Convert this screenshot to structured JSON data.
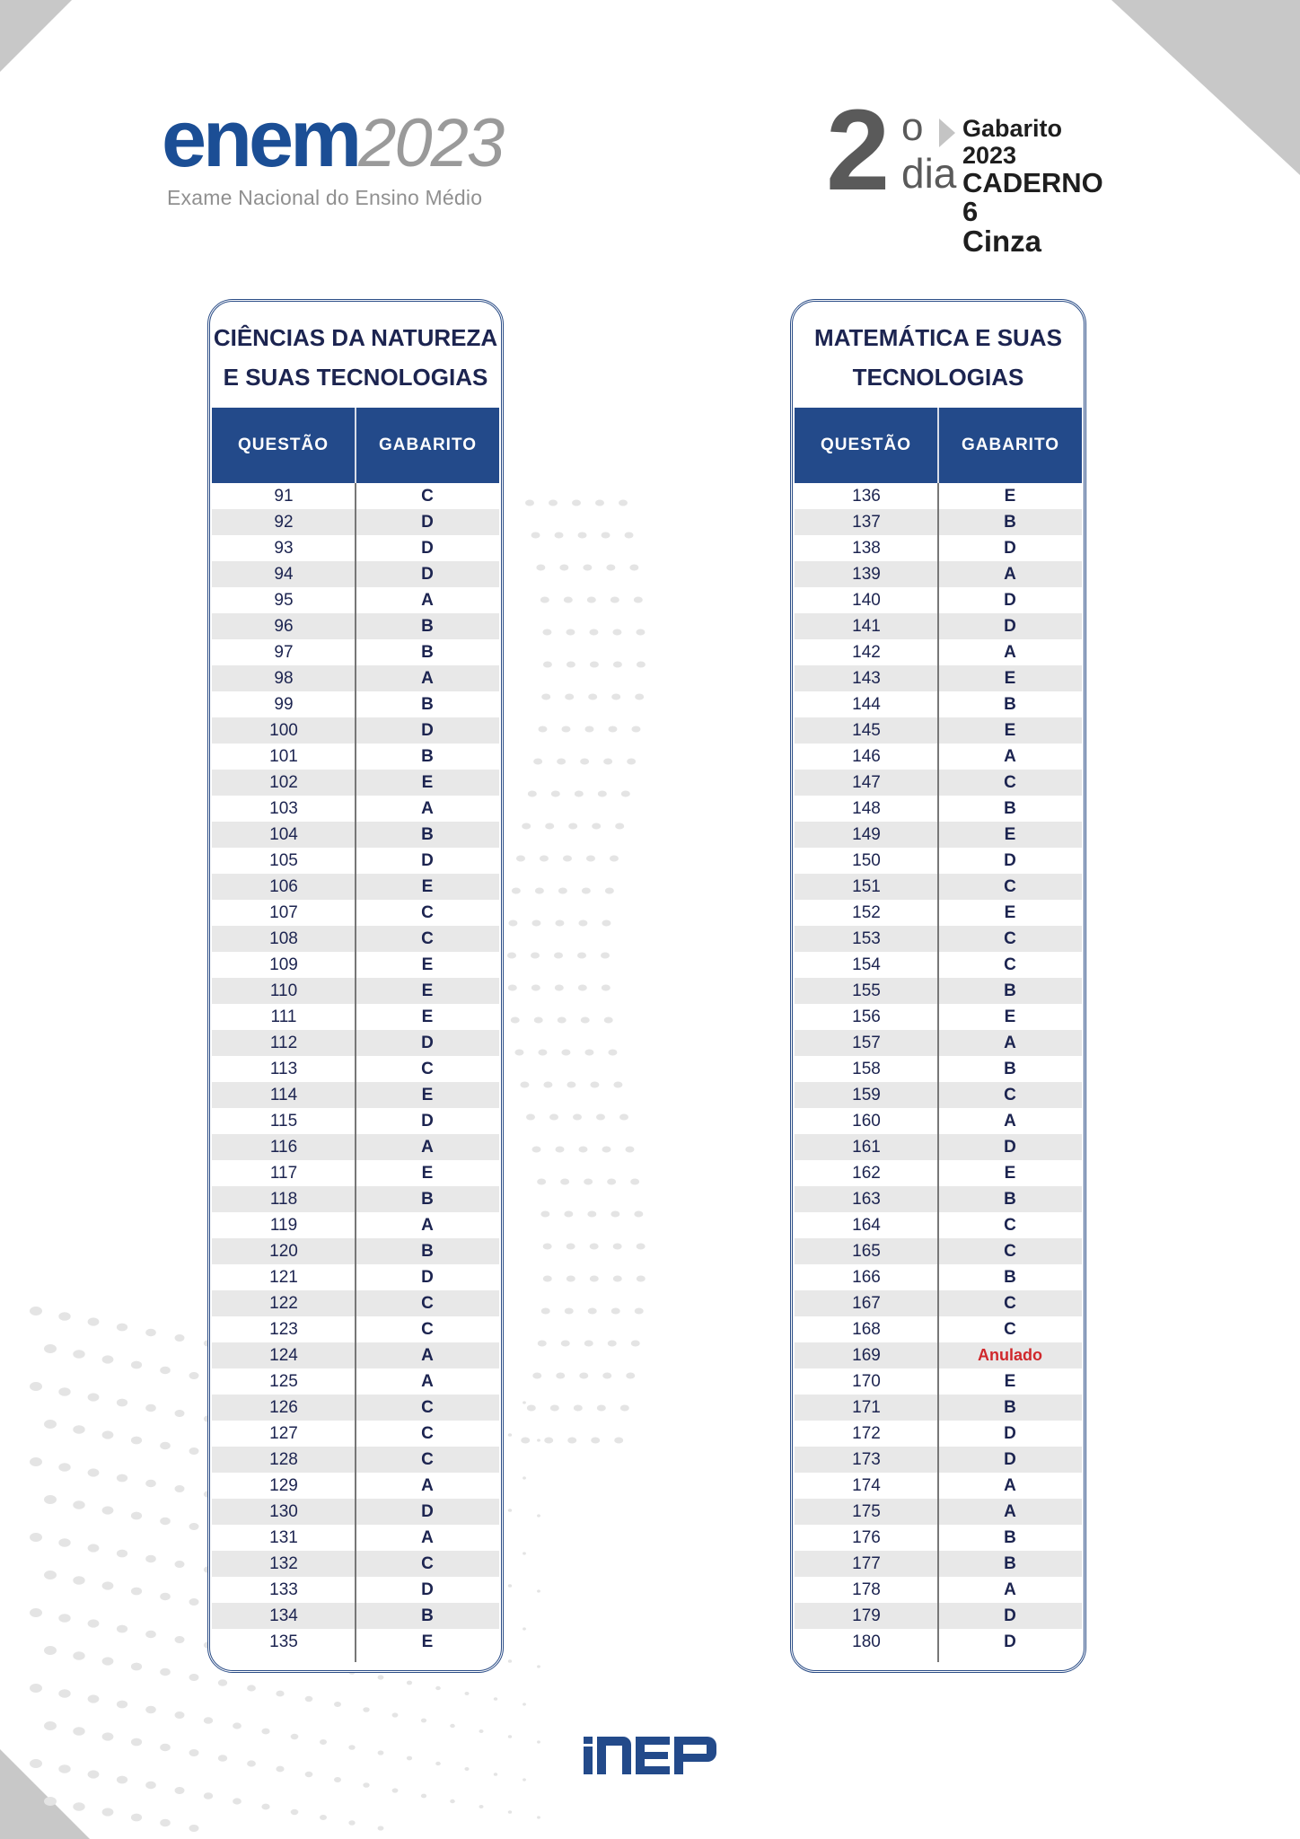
{
  "header": {
    "logo": {
      "brand": "enem",
      "year": "2023",
      "subtitle": "Exame Nacional do Ensino Médio"
    },
    "day_badge": {
      "number": "2",
      "ordinal": "o",
      "word": "dia",
      "line1": "Gabarito 2023",
      "line2": "CADERNO 6",
      "line3": "Cinza"
    }
  },
  "colors": {
    "brand_blue": "#1b4e95",
    "table_header_bg": "#234a8a",
    "text_navy": "#1c2450",
    "annulled_red": "#d0282c",
    "stripe_gray": "#e8e8e8"
  },
  "tables": [
    {
      "title_line1": "CIÊNCIAS DA NATUREZA",
      "title_line2": "E SUAS TECNOLOGIAS",
      "col_question": "QUESTÃO",
      "col_answer": "GABARITO",
      "rows": [
        [
          "91",
          "C"
        ],
        [
          "92",
          "D"
        ],
        [
          "93",
          "D"
        ],
        [
          "94",
          "D"
        ],
        [
          "95",
          "A"
        ],
        [
          "96",
          "B"
        ],
        [
          "97",
          "B"
        ],
        [
          "98",
          "A"
        ],
        [
          "99",
          "B"
        ],
        [
          "100",
          "D"
        ],
        [
          "101",
          "B"
        ],
        [
          "102",
          "E"
        ],
        [
          "103",
          "A"
        ],
        [
          "104",
          "B"
        ],
        [
          "105",
          "D"
        ],
        [
          "106",
          "E"
        ],
        [
          "107",
          "C"
        ],
        [
          "108",
          "C"
        ],
        [
          "109",
          "E"
        ],
        [
          "110",
          "E"
        ],
        [
          "111",
          "E"
        ],
        [
          "112",
          "D"
        ],
        [
          "113",
          "C"
        ],
        [
          "114",
          "E"
        ],
        [
          "115",
          "D"
        ],
        [
          "116",
          "A"
        ],
        [
          "117",
          "E"
        ],
        [
          "118",
          "B"
        ],
        [
          "119",
          "A"
        ],
        [
          "120",
          "B"
        ],
        [
          "121",
          "D"
        ],
        [
          "122",
          "C"
        ],
        [
          "123",
          "C"
        ],
        [
          "124",
          "A"
        ],
        [
          "125",
          "A"
        ],
        [
          "126",
          "C"
        ],
        [
          "127",
          "C"
        ],
        [
          "128",
          "C"
        ],
        [
          "129",
          "A"
        ],
        [
          "130",
          "D"
        ],
        [
          "131",
          "A"
        ],
        [
          "132",
          "C"
        ],
        [
          "133",
          "D"
        ],
        [
          "134",
          "B"
        ],
        [
          "135",
          "E"
        ]
      ]
    },
    {
      "title_line1": "MATEMÁTICA E SUAS",
      "title_line2": "TECNOLOGIAS",
      "col_question": "QUESTÃO",
      "col_answer": "GABARITO",
      "rows": [
        [
          "136",
          "E"
        ],
        [
          "137",
          "B"
        ],
        [
          "138",
          "D"
        ],
        [
          "139",
          "A"
        ],
        [
          "140",
          "D"
        ],
        [
          "141",
          "D"
        ],
        [
          "142",
          "A"
        ],
        [
          "143",
          "E"
        ],
        [
          "144",
          "B"
        ],
        [
          "145",
          "E"
        ],
        [
          "146",
          "A"
        ],
        [
          "147",
          "C"
        ],
        [
          "148",
          "B"
        ],
        [
          "149",
          "E"
        ],
        [
          "150",
          "D"
        ],
        [
          "151",
          "C"
        ],
        [
          "152",
          "E"
        ],
        [
          "153",
          "C"
        ],
        [
          "154",
          "C"
        ],
        [
          "155",
          "B"
        ],
        [
          "156",
          "E"
        ],
        [
          "157",
          "A"
        ],
        [
          "158",
          "B"
        ],
        [
          "159",
          "C"
        ],
        [
          "160",
          "A"
        ],
        [
          "161",
          "D"
        ],
        [
          "162",
          "E"
        ],
        [
          "163",
          "B"
        ],
        [
          "164",
          "C"
        ],
        [
          "165",
          "C"
        ],
        [
          "166",
          "B"
        ],
        [
          "167",
          "C"
        ],
        [
          "168",
          "C"
        ],
        [
          "169",
          "Anulado"
        ],
        [
          "170",
          "E"
        ],
        [
          "171",
          "B"
        ],
        [
          "172",
          "D"
        ],
        [
          "173",
          "D"
        ],
        [
          "174",
          "A"
        ],
        [
          "175",
          "A"
        ],
        [
          "176",
          "B"
        ],
        [
          "177",
          "B"
        ],
        [
          "178",
          "A"
        ],
        [
          "179",
          "D"
        ],
        [
          "180",
          "D"
        ]
      ]
    }
  ],
  "footer": {
    "logo_text": "inep"
  }
}
